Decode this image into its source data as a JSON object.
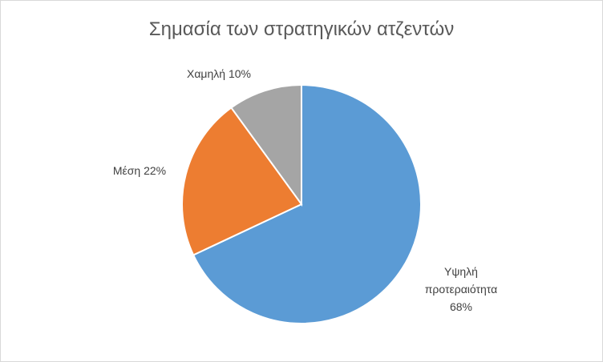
{
  "chart_data": {
    "type": "pie",
    "title": "Σημασία των στρατηγικών ατζεντών",
    "categories": [
      "Υψηλή προτεραιότητα",
      "Μέση",
      "Χαμηλή"
    ],
    "values": [
      68,
      22,
      10
    ],
    "value_labels": [
      "68%",
      "22%",
      "10%"
    ],
    "colors": [
      "#5b9bd5",
      "#ed7d31",
      "#a5a5a5"
    ]
  }
}
